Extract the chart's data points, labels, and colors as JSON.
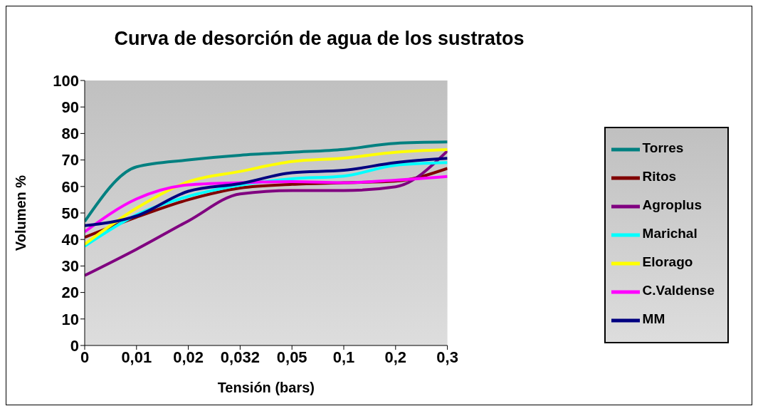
{
  "chart_data": {
    "type": "line",
    "title": "Curva de desorción de agua de los sustratos",
    "xlabel": "Tensión (bars)",
    "ylabel": "Volumen %",
    "categories": [
      "0",
      "0,01",
      "0,02",
      "0,032",
      "0,05",
      "0,1",
      "0,2",
      "0,3"
    ],
    "series": [
      {
        "name": "MM",
        "color": "#000080",
        "values": [
          45.2,
          48.9,
          58.2,
          61.1,
          65.2,
          66.1,
          69,
          70.6
        ]
      },
      {
        "name": "C.Valdense",
        "color": "#ff00ff",
        "values": [
          42.9,
          55.3,
          60.6,
          61.4,
          61.8,
          61.4,
          62.4,
          63.8
        ]
      },
      {
        "name": "Elorago",
        "color": "#ffff00",
        "values": [
          38.2,
          51.8,
          61.8,
          65.7,
          69.4,
          70.7,
          72.9,
          73.9
        ]
      },
      {
        "name": "Marichal",
        "color": "#00ffff",
        "values": [
          37.5,
          49.3,
          56.3,
          60.5,
          62.9,
          63.9,
          68,
          69
        ]
      },
      {
        "name": "Agroplus",
        "color": "#800080",
        "values": [
          26.4,
          36.3,
          47,
          57.2,
          58.5,
          58.5,
          59.9,
          73.4
        ]
      },
      {
        "name": "Ritos",
        "color": "#800000",
        "values": [
          40.8,
          48.4,
          55,
          59.4,
          60.8,
          61.4,
          62,
          66.8
        ]
      },
      {
        "name": "Torres",
        "color": "#008080",
        "values": [
          46.8,
          67.4,
          70,
          71.8,
          72.9,
          74,
          76.3,
          76.8
        ]
      }
    ],
    "ylim": [
      0,
      100
    ],
    "yticks": [
      0,
      10,
      20,
      30,
      40,
      50,
      60,
      70,
      80,
      90,
      100
    ],
    "legend": "right",
    "marker": "none",
    "line_style": "solid"
  }
}
